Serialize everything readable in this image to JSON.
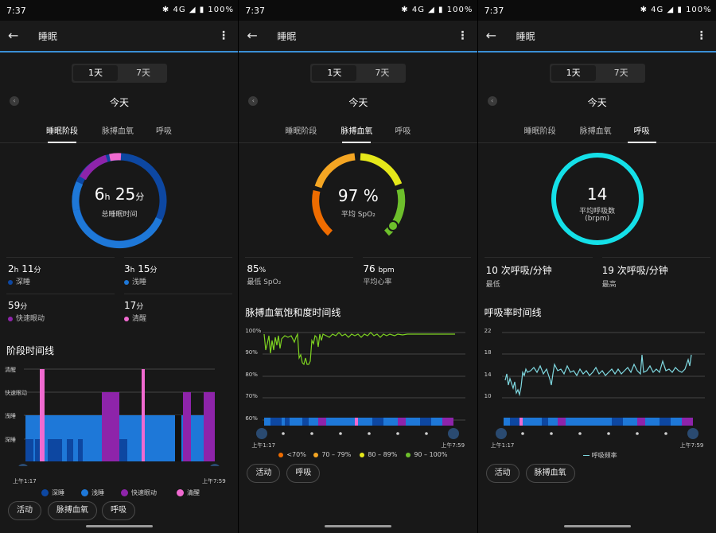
{
  "status": {
    "time": "7:37",
    "battery": "100%",
    "net": "4G"
  },
  "app": {
    "title": "睡眠"
  },
  "range": {
    "day": "1天",
    "week": "7天"
  },
  "date_label": "今天",
  "tabs": [
    "睡眠阶段",
    "脉搏血氧",
    "呼吸"
  ],
  "colors": {
    "deep": "#0d47a1",
    "light": "#1e78d8",
    "rem": "#8e24aa",
    "awake": "#f06ad0",
    "spo2_low": "#ef6c00",
    "spo2_mid": "#f5a623",
    "spo2_high": "#e5e81a",
    "spo2_top": "#6dbf2b",
    "resp": "#14e0e8"
  },
  "sleep": {
    "total_value": "6",
    "total_unit": "h",
    "total_min": "25",
    "total_min_unit": "分",
    "total_label": "总睡眠时间",
    "deep_h": "2",
    "deep_h_unit": "h",
    "deep_m": "11",
    "deep_m_unit": "分",
    "deep_label": "深睡",
    "light_h": "3",
    "light_h_unit": "h",
    "light_m": "15",
    "light_m_unit": "分",
    "light_label": "浅睡",
    "rem_value": "59",
    "rem_unit": "分",
    "rem_label": "快速眼动",
    "awake_value": "17",
    "awake_unit": "分",
    "awake_label": "清醒",
    "timeline_title": "阶段时间线",
    "levels": [
      "清醒",
      "快速眼动",
      "浅睡",
      "深睡"
    ],
    "start": "上午1:17",
    "end": "上午7:59",
    "legend": [
      "深睡",
      "浅睡",
      "快速眼动",
      "清醒"
    ]
  },
  "spo2": {
    "avg_value": "97 %",
    "avg_label": "平均 SpO₂",
    "min_value": "85",
    "min_unit": "%",
    "min_label": "最低 SpO₂",
    "hr_value": "76",
    "hr_unit": "bpm",
    "hr_label": "平均心率",
    "timeline_title": "脉搏血氧饱和度时间线",
    "y_ticks": [
      "100%",
      "90%",
      "80%",
      "70%",
      "60%"
    ],
    "start": "上午1:17",
    "end": "上午7:59",
    "legend": [
      "<70%",
      "70 – 79%",
      "80 – 89%",
      "90 – 100%"
    ]
  },
  "resp": {
    "avg_value": "14",
    "avg_label": "平均呼吸数",
    "avg_unit": "(brpm)",
    "low_value": "10 次呼吸/分钟",
    "low_label": "最低",
    "high_value": "19 次呼吸/分钟",
    "high_label": "最高",
    "timeline_title": "呼吸率时间线",
    "y_ticks": [
      "22",
      "18",
      "14",
      "10"
    ],
    "start": "上午1:17",
    "end": "上午7:59",
    "legend": "呼吸频率"
  },
  "chips": {
    "activity": "活动",
    "spo2": "脉搏血氧",
    "resp": "呼吸"
  }
}
